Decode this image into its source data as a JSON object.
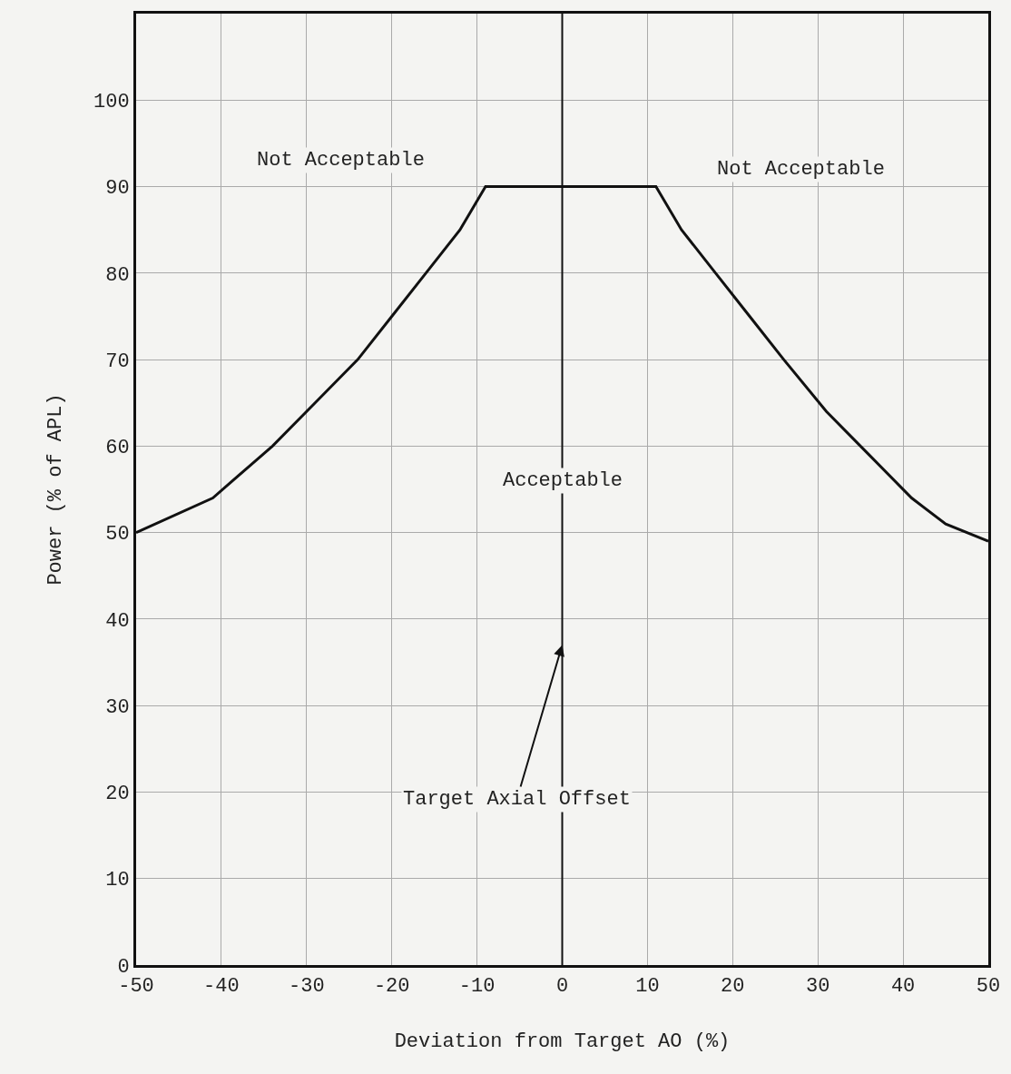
{
  "chart_data": {
    "type": "line",
    "xlabel": "Deviation from Target AO (%)",
    "ylabel": "Power (% of APL)",
    "x": [
      -50,
      -41,
      -34,
      -29,
      -24,
      -20,
      -16,
      -12,
      -9,
      11,
      14,
      18,
      22,
      26,
      31,
      36,
      41,
      45,
      50
    ],
    "series": [
      {
        "color": "#111111",
        "values": [
          50,
          54,
          60,
          65,
          70,
          75,
          80,
          85,
          90,
          90,
          85,
          80,
          75,
          70,
          64,
          59,
          54,
          51,
          49
        ]
      }
    ],
    "xlim": [
      -50,
      50
    ],
    "xticks": [
      -50,
      -40,
      -30,
      -20,
      -10,
      0,
      10,
      20,
      30,
      40,
      50
    ],
    "ylim": [
      0,
      110
    ],
    "yticks": [
      0,
      10,
      20,
      30,
      40,
      50,
      60,
      70,
      80,
      90,
      100
    ],
    "grid": true,
    "marker": "none",
    "line_style": "solid",
    "ref_lines": [
      {
        "axis": "x",
        "value": 0,
        "color": "#111111"
      }
    ],
    "annotations": [
      "Not Acceptable",
      "Not Acceptable",
      "Acceptable",
      {
        "text": "Target Axial Offset",
        "x": 0,
        "y": 37
      }
    ]
  }
}
